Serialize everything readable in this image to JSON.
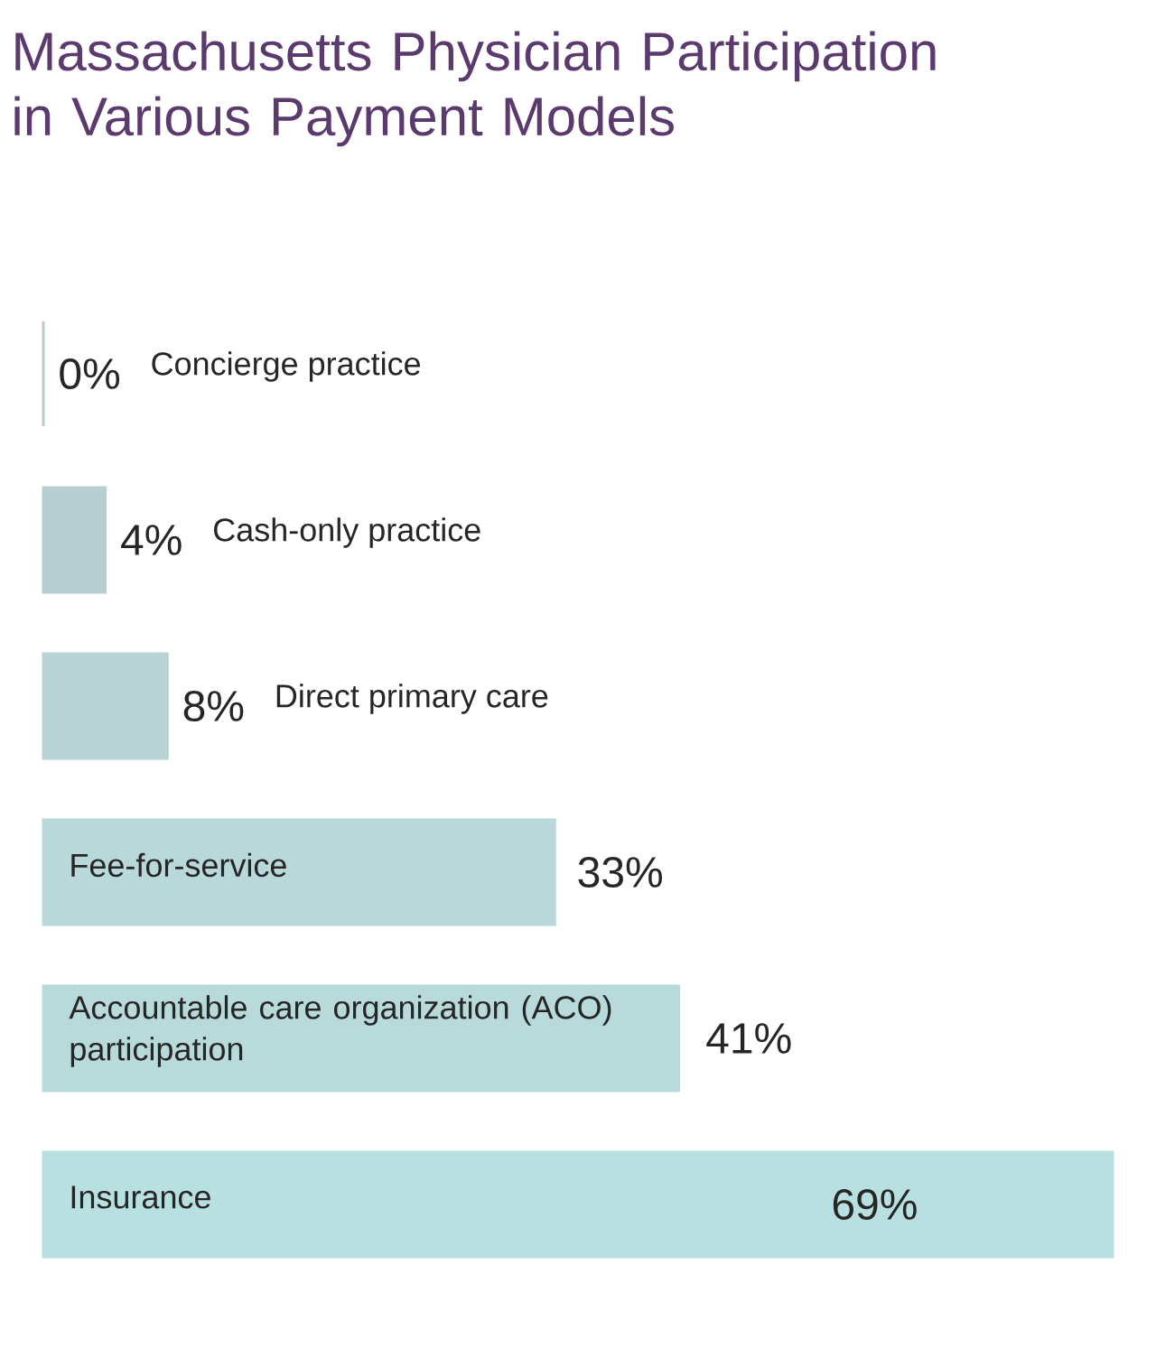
{
  "chart_data": {
    "type": "bar",
    "orientation": "horizontal",
    "title": "Massachusetts Physician Participation in Various Payment Models",
    "categories": [
      "Concierge practice",
      "Cash-only practice",
      "Direct primary care",
      "Fee-for-service",
      "Accountable care organization (ACO) participation",
      "Insurance"
    ],
    "values": [
      0,
      4,
      8,
      33,
      41,
      69
    ],
    "value_labels": [
      "0%",
      "4%",
      "8%",
      "33%",
      "41%",
      "69%"
    ],
    "colors": [
      "#b7cdd1",
      "#b7cfd2",
      "#b8d2d5",
      "#b8d8da",
      "#b8dadb",
      "#b9e0e0"
    ]
  }
}
